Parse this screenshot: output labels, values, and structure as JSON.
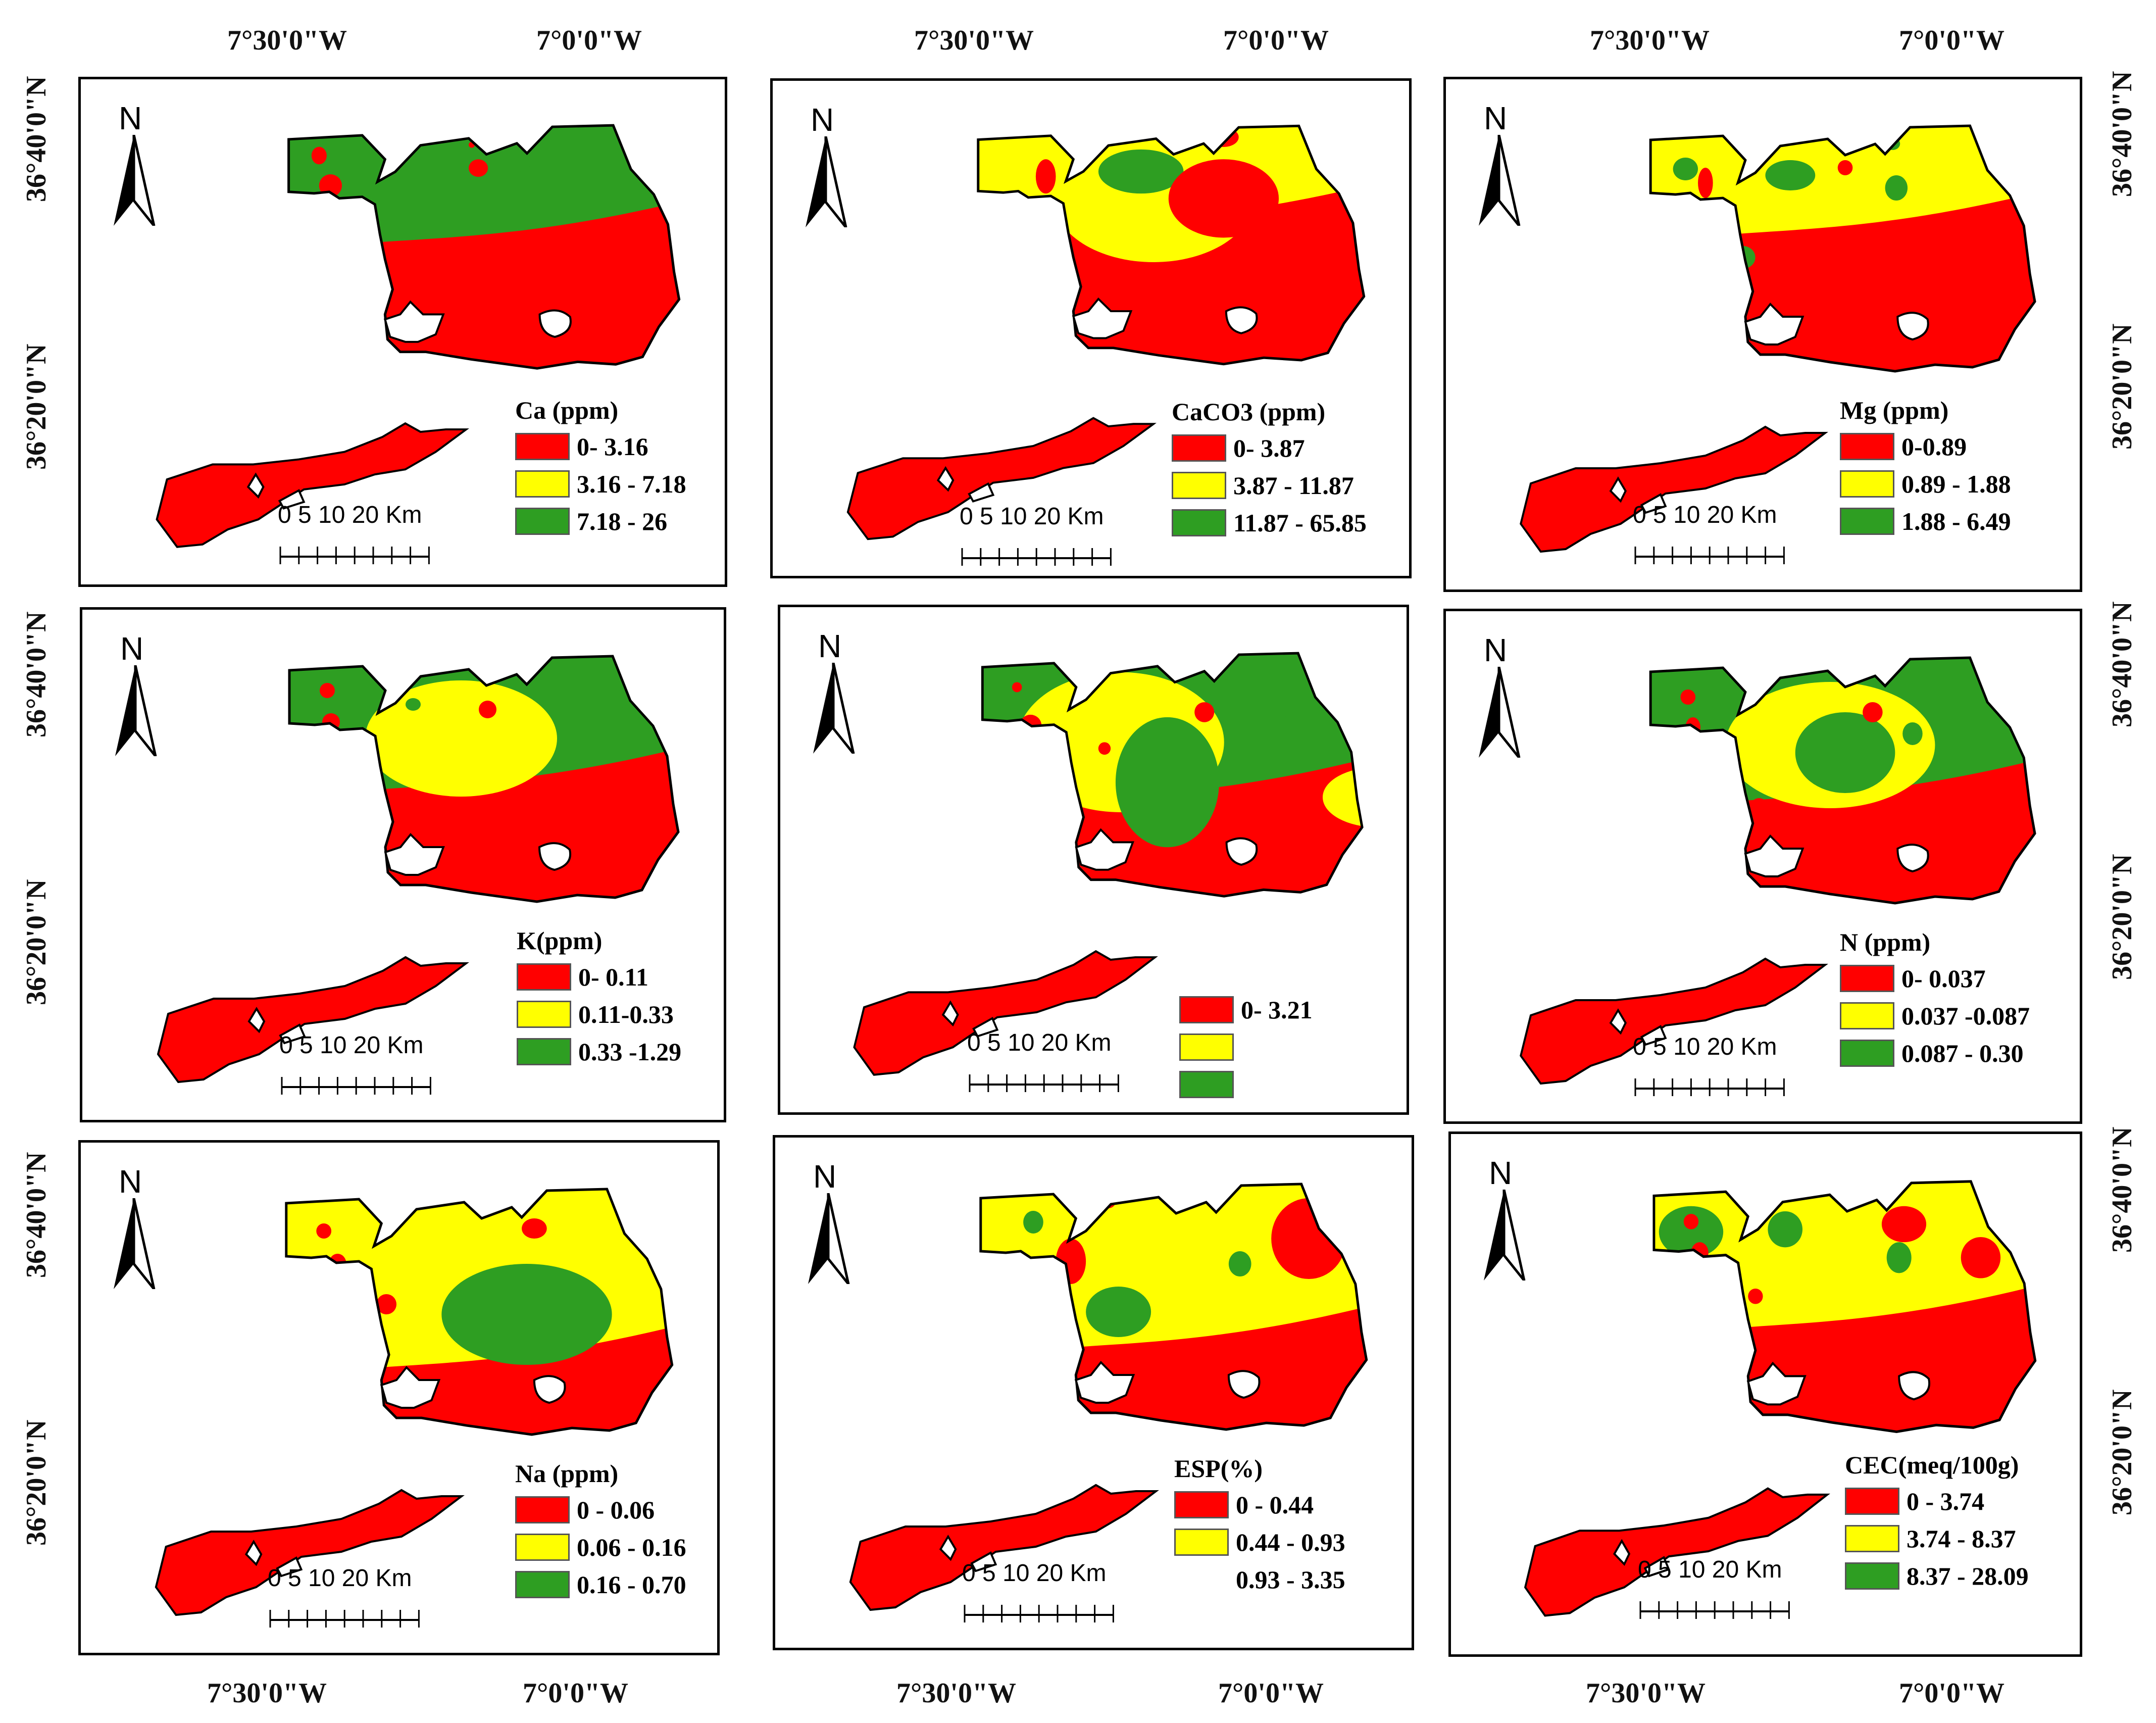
{
  "coords": {
    "top": [
      "7°30'0\"W",
      "7°0'0\"W",
      "7°30'0\"W",
      "7°0'0\"W",
      "7°30'0\"W",
      "7°0'0\"W"
    ],
    "bottom": [
      "7°30'0\"W",
      "7°0'0\"W",
      "7°30'0\"W",
      "7°0'0\"W",
      "7°30'0\"W",
      "7°0'0\"W"
    ],
    "left": [
      "36°40'0\"N",
      "36°20'0\"N",
      "36°40'0\"N",
      "36°20'0\"N",
      "36°40'0\"N",
      "36°20'0\"N"
    ],
    "right": [
      "36°40'0\"N",
      "36°20'0\"N",
      "36°40'0\"N",
      "36°20'0\"N",
      "36°40'0\"N",
      "36°20'0\"N"
    ]
  },
  "colors": {
    "low": "#ff0000",
    "medium": "#ffff00",
    "high": "#2e9e22",
    "outline": "#000000",
    "lake": "#ffffff"
  },
  "north_label": "N",
  "scale_label": "0   5 10       20 Km",
  "panels": [
    {
      "title": "Ca (ppm)",
      "classes": [
        "0- 3.16",
        "3.16  - 7.18",
        "7.18  - 26"
      ]
    },
    {
      "title": "CaCO3 (ppm)",
      "classes": [
        "0- 3.87",
        "3.87 - 11.87",
        "11.87 - 65.85"
      ]
    },
    {
      "title": "Mg (ppm)",
      "classes": [
        "0-0.89",
        "0.89  - 1.88",
        "1.88 - 6.49"
      ]
    },
    {
      "title": "K(ppm)",
      "classes": [
        "0- 0.11",
        "0.11-0.33",
        "0.33 -1.29"
      ]
    },
    {
      "title": "",
      "classes": [
        "0- 3.21",
        "",
        ""
      ]
    },
    {
      "title": "N (ppm)",
      "classes": [
        "0- 0.037",
        "0.037 -0.087",
        "0.087  - 0.30"
      ]
    },
    {
      "title": "Na (ppm)",
      "classes": [
        "0 - 0.06",
        "0.06  - 0.16",
        "0.16 - 0.70"
      ]
    },
    {
      "title": "ESP(%)",
      "classes": [
        "0 - 0.44",
        "0.44 - 0.93",
        "0.93 - 3.35"
      ]
    },
    {
      "title": "CEC(meq/100g)",
      "classes": [
        "0 - 3.74",
        "3.74 - 8.37",
        "8.37 - 28.09"
      ]
    }
  ]
}
